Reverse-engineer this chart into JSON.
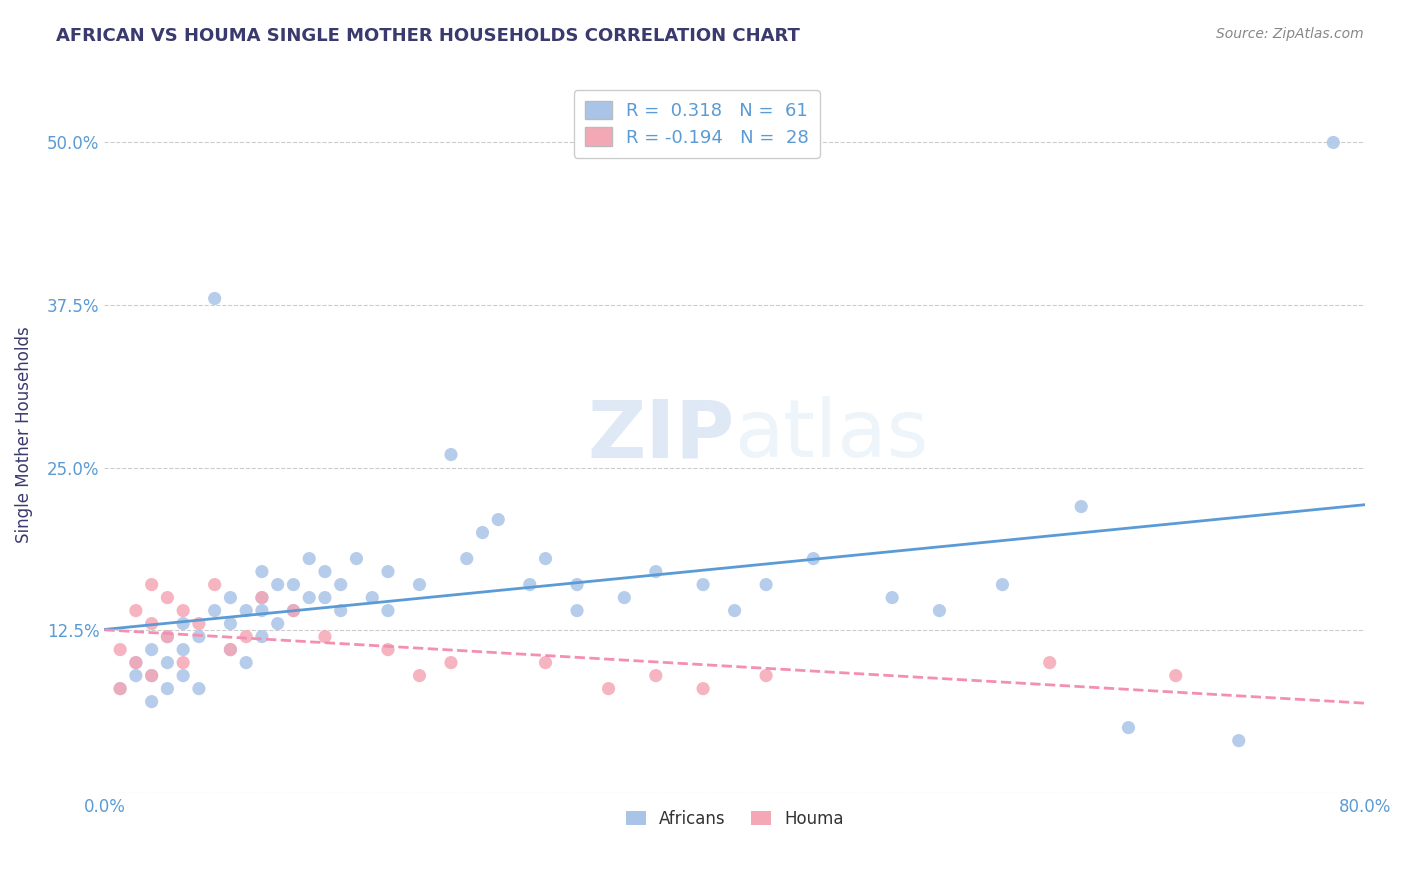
{
  "title": "AFRICAN VS HOUMA SINGLE MOTHER HOUSEHOLDS CORRELATION CHART",
  "source": "Source: ZipAtlas.com",
  "ylabel": "Single Mother Households",
  "xlim": [
    0.0,
    0.8
  ],
  "ylim": [
    0.0,
    0.55
  ],
  "xticks": [
    0.0,
    0.2,
    0.4,
    0.6,
    0.8
  ],
  "xticklabels": [
    "0.0%",
    "",
    "",
    "",
    "80.0%"
  ],
  "ytick_positions": [
    0.0,
    0.125,
    0.25,
    0.375,
    0.5
  ],
  "ytick_labels": [
    "",
    "12.5%",
    "25.0%",
    "37.5%",
    "50.0%"
  ],
  "grid_color": "#cccccc",
  "background_color": "#ffffff",
  "africans_color": "#aac4e8",
  "houma_color": "#f4a7b5",
  "africans_line_color": "#5b9bd5",
  "houma_line_color": "#f48fb1",
  "R_africans": 0.318,
  "N_africans": 61,
  "R_houma": -0.194,
  "N_houma": 28,
  "legend_africans": "Africans",
  "legend_houma": "Houma",
  "watermark_zip": "ZIP",
  "watermark_atlas": "atlas",
  "title_color": "#3a3a6e",
  "axis_label_color": "#3a3a6e",
  "tick_label_color": "#5b9bd5",
  "africans_scatter_x": [
    0.01,
    0.02,
    0.02,
    0.03,
    0.03,
    0.03,
    0.04,
    0.04,
    0.04,
    0.05,
    0.05,
    0.05,
    0.06,
    0.06,
    0.07,
    0.07,
    0.08,
    0.08,
    0.08,
    0.09,
    0.09,
    0.1,
    0.1,
    0.1,
    0.1,
    0.11,
    0.11,
    0.12,
    0.12,
    0.13,
    0.13,
    0.14,
    0.14,
    0.15,
    0.15,
    0.16,
    0.17,
    0.18,
    0.18,
    0.2,
    0.22,
    0.23,
    0.24,
    0.25,
    0.27,
    0.28,
    0.3,
    0.3,
    0.33,
    0.35,
    0.38,
    0.4,
    0.42,
    0.45,
    0.5,
    0.53,
    0.57,
    0.62,
    0.65,
    0.72,
    0.78
  ],
  "africans_scatter_y": [
    0.08,
    0.09,
    0.1,
    0.07,
    0.09,
    0.11,
    0.08,
    0.1,
    0.12,
    0.09,
    0.11,
    0.13,
    0.08,
    0.12,
    0.14,
    0.38,
    0.11,
    0.13,
    0.15,
    0.1,
    0.14,
    0.12,
    0.15,
    0.17,
    0.14,
    0.13,
    0.16,
    0.14,
    0.16,
    0.15,
    0.18,
    0.15,
    0.17,
    0.14,
    0.16,
    0.18,
    0.15,
    0.17,
    0.14,
    0.16,
    0.26,
    0.18,
    0.2,
    0.21,
    0.16,
    0.18,
    0.16,
    0.14,
    0.15,
    0.17,
    0.16,
    0.14,
    0.16,
    0.18,
    0.15,
    0.14,
    0.16,
    0.22,
    0.05,
    0.04,
    0.5
  ],
  "houma_scatter_x": [
    0.01,
    0.01,
    0.02,
    0.02,
    0.03,
    0.03,
    0.03,
    0.04,
    0.04,
    0.05,
    0.05,
    0.06,
    0.07,
    0.08,
    0.09,
    0.1,
    0.12,
    0.14,
    0.18,
    0.2,
    0.22,
    0.28,
    0.32,
    0.35,
    0.38,
    0.42,
    0.6,
    0.68
  ],
  "houma_scatter_y": [
    0.08,
    0.11,
    0.1,
    0.14,
    0.09,
    0.13,
    0.16,
    0.12,
    0.15,
    0.1,
    0.14,
    0.13,
    0.16,
    0.11,
    0.12,
    0.15,
    0.14,
    0.12,
    0.11,
    0.09,
    0.1,
    0.1,
    0.08,
    0.09,
    0.08,
    0.09,
    0.1,
    0.09
  ]
}
